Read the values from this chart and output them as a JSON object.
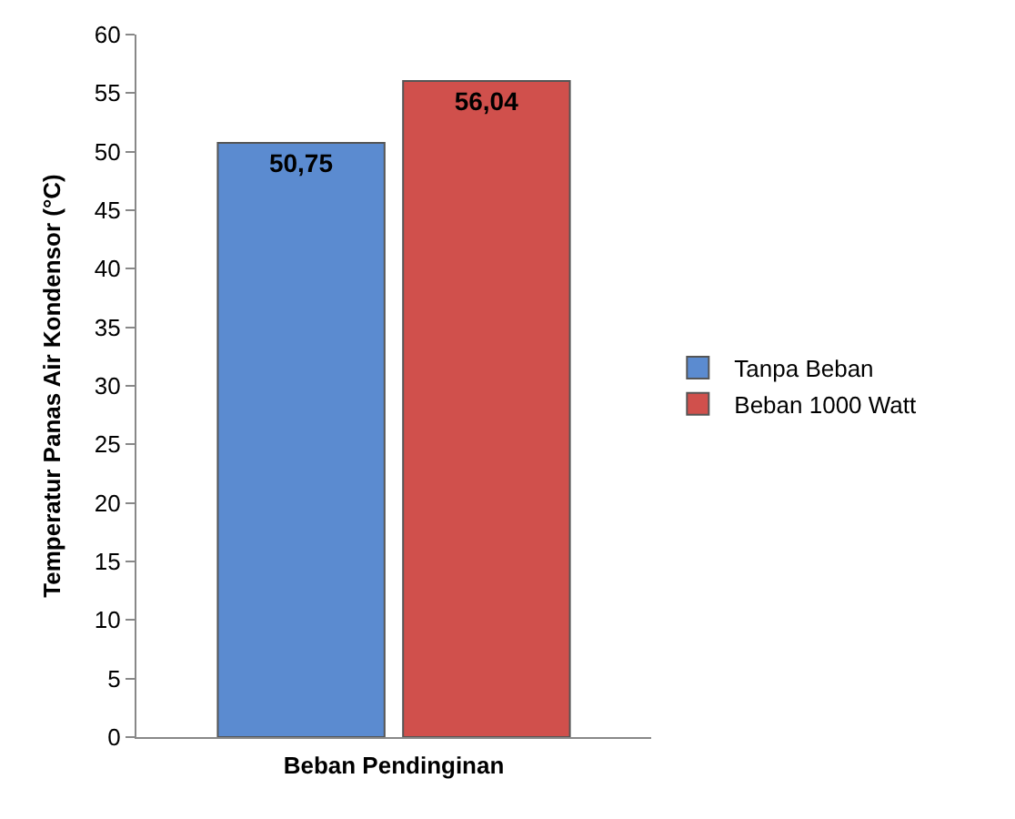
{
  "chart_data": {
    "type": "bar",
    "xlabel": "Beban Pendinginan",
    "ylabel": "Temperatur Panas Air Kondensor (°C)",
    "categories": [
      null
    ],
    "series": [
      {
        "name": "Tanpa Beban",
        "color": "#5b8bd0",
        "values": [
          50.75
        ],
        "value_labels": [
          "50,75"
        ]
      },
      {
        "name": "Beban 1000 Watt",
        "color": "#d0504c",
        "values": [
          56.04
        ],
        "value_labels": [
          "56,04"
        ]
      }
    ],
    "ylim": [
      0,
      60
    ],
    "yticks": [
      0,
      5,
      10,
      15,
      20,
      25,
      30,
      35,
      40,
      45,
      50,
      55,
      60
    ],
    "legend": "right"
  }
}
